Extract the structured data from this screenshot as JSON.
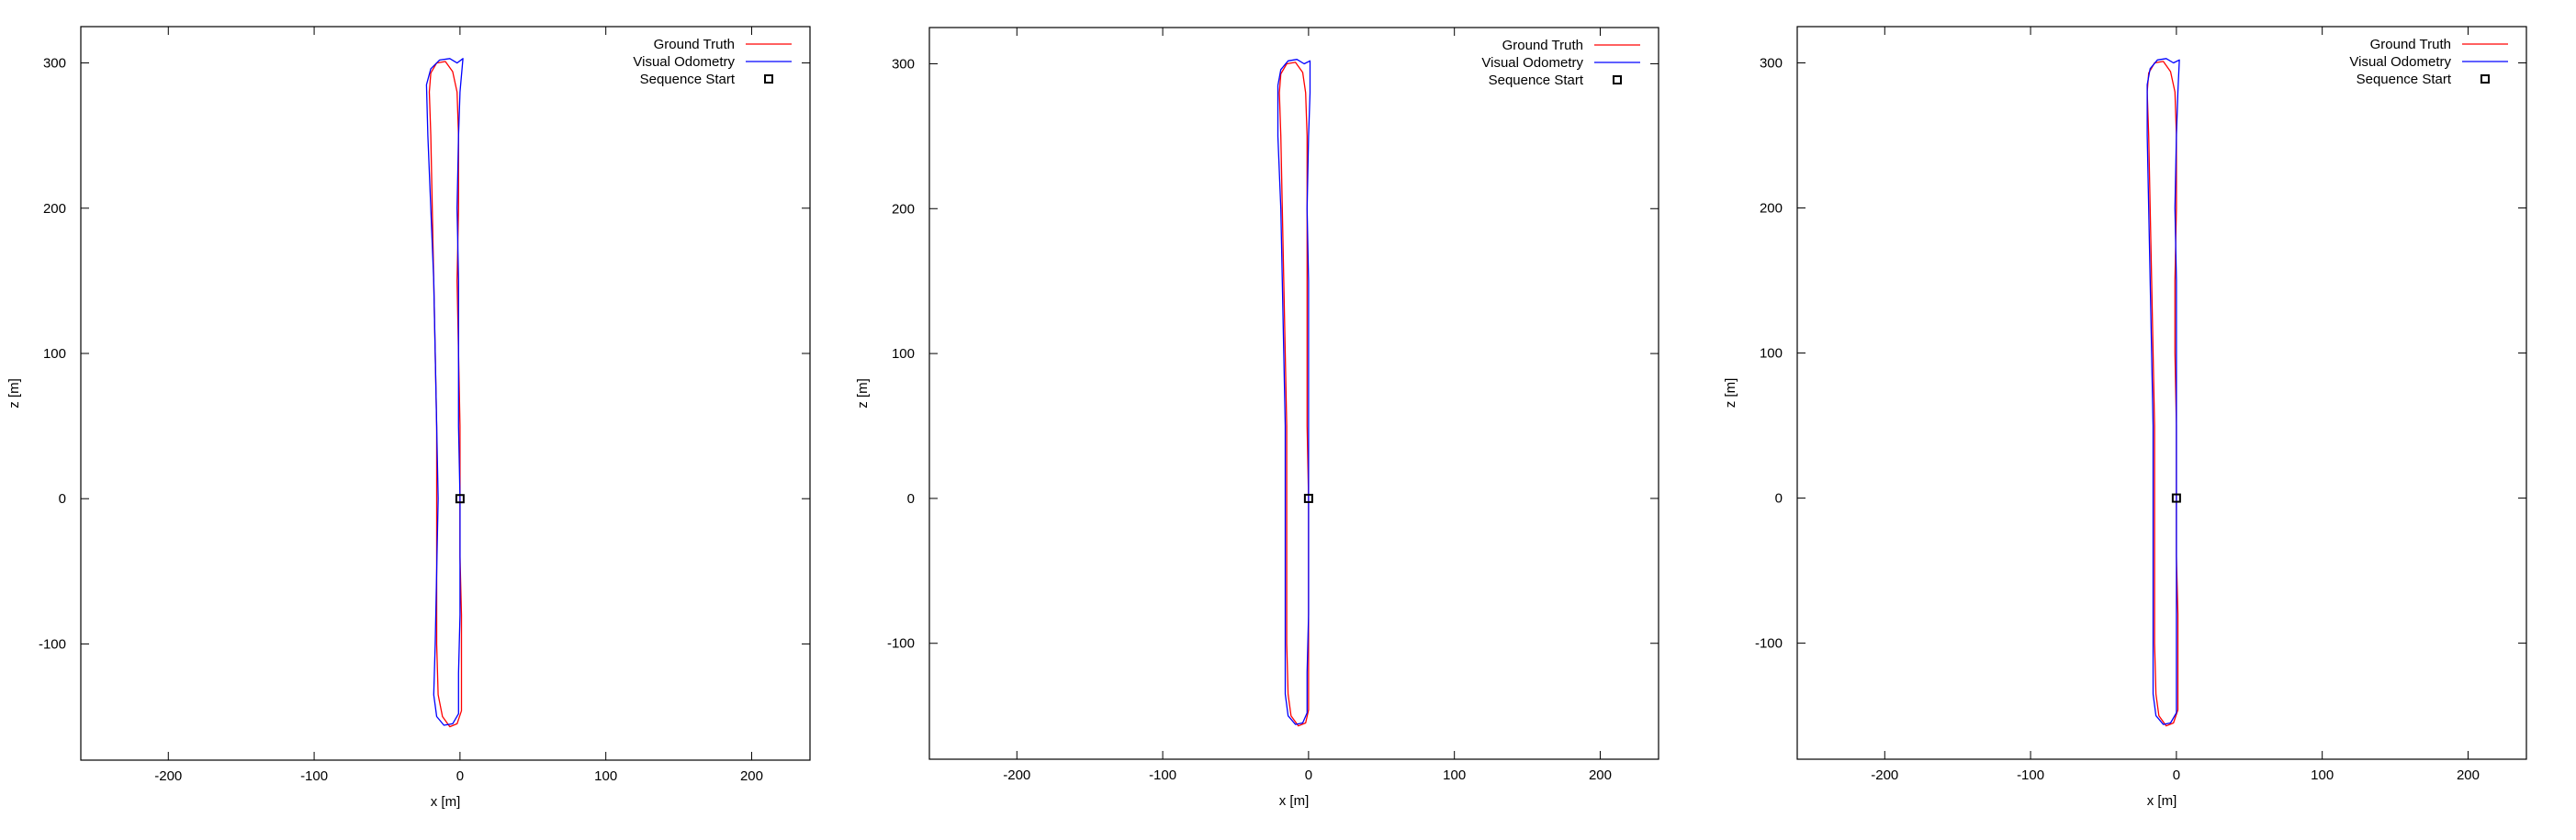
{
  "chart_data": [
    {
      "type": "line",
      "xlabel": "x [m]",
      "ylabel": "z [m]",
      "xlim": [
        -260,
        240
      ],
      "ylim": [
        -180,
        325
      ],
      "x_ticks": [
        -200,
        -100,
        0,
        100,
        200
      ],
      "y_ticks": [
        -100,
        0,
        100,
        200,
        300
      ],
      "x_tick_labels": [
        "-200",
        "-100",
        "0",
        "100",
        "200"
      ],
      "y_tick_labels": [
        "-100",
        "0",
        "100",
        "200",
        "300"
      ],
      "grid": false,
      "legend_position": "top-right",
      "legend": [
        "Ground Truth",
        "Visual Odometry",
        "Sequence Start"
      ],
      "series": [
        {
          "name": "Ground Truth",
          "color": "#ff0000",
          "points": [
            [
              0,
              0
            ],
            [
              0,
              50
            ],
            [
              -1,
              100
            ],
            [
              -2,
              150
            ],
            [
              -1,
              200
            ],
            [
              -1,
              250
            ],
            [
              -2,
              280
            ],
            [
              -5,
              294
            ],
            [
              -10,
              301
            ],
            [
              -16,
              300
            ],
            [
              -20,
              293
            ],
            [
              -21,
              280
            ],
            [
              -20,
              250
            ],
            [
              -19,
              200
            ],
            [
              -18,
              150
            ],
            [
              -17,
              100
            ],
            [
              -16,
              50
            ],
            [
              -16,
              0
            ],
            [
              -16,
              -50
            ],
            [
              -16,
              -100
            ],
            [
              -15,
              -135
            ],
            [
              -12,
              -150
            ],
            [
              -7,
              -157
            ],
            [
              -2,
              -155
            ],
            [
              1,
              -146
            ],
            [
              1,
              -120
            ],
            [
              1,
              -80
            ],
            [
              0,
              -40
            ],
            [
              0,
              0
            ]
          ]
        },
        {
          "name": "Visual Odometry",
          "color": "#0000ff",
          "points": [
            [
              0,
              0
            ],
            [
              -1,
              50
            ],
            [
              -1,
              100
            ],
            [
              -1,
              150
            ],
            [
              -2,
              200
            ],
            [
              -1,
              250
            ],
            [
              0,
              280
            ],
            [
              2,
              303
            ],
            [
              -2,
              300
            ],
            [
              -7,
              303
            ],
            [
              -14,
              302
            ],
            [
              -20,
              296
            ],
            [
              -23,
              285
            ],
            [
              -22,
              250
            ],
            [
              -20,
              200
            ],
            [
              -18,
              150
            ],
            [
              -17,
              100
            ],
            [
              -16,
              50
            ],
            [
              -15,
              0
            ],
            [
              -16,
              -50
            ],
            [
              -17,
              -100
            ],
            [
              -18,
              -135
            ],
            [
              -16,
              -150
            ],
            [
              -11,
              -156
            ],
            [
              -5,
              -155
            ],
            [
              -1,
              -148
            ],
            [
              -1,
              -120
            ],
            [
              0,
              -80
            ],
            [
              0,
              -40
            ],
            [
              0,
              0
            ]
          ]
        }
      ],
      "marker": {
        "name": "Sequence Start",
        "x": 0,
        "y": 0,
        "color": "#000000"
      }
    },
    {
      "type": "line",
      "xlabel": "x [m]",
      "ylabel": "z [m]",
      "xlim": [
        -260,
        240
      ],
      "ylim": [
        -180,
        325
      ],
      "x_ticks": [
        -200,
        -100,
        0,
        100,
        200
      ],
      "y_ticks": [
        -100,
        0,
        100,
        200,
        300
      ],
      "x_tick_labels": [
        "-200",
        "-100",
        "0",
        "100",
        "200"
      ],
      "y_tick_labels": [
        "-100",
        "0",
        "100",
        "200",
        "300"
      ],
      "grid": false,
      "legend_position": "top-right",
      "legend": [
        "Ground Truth",
        "Visual Odometry",
        "Sequence Start"
      ],
      "series": [
        {
          "name": "Ground Truth",
          "color": "#ff0000",
          "points": [
            [
              0,
              0
            ],
            [
              -1,
              50
            ],
            [
              -1,
              100
            ],
            [
              -1,
              150
            ],
            [
              -1,
              200
            ],
            [
              -1,
              250
            ],
            [
              -2,
              280
            ],
            [
              -4,
              294
            ],
            [
              -9,
              301
            ],
            [
              -15,
              300
            ],
            [
              -19,
              293
            ],
            [
              -20,
              280
            ],
            [
              -19,
              250
            ],
            [
              -18,
              200
            ],
            [
              -17,
              150
            ],
            [
              -16,
              100
            ],
            [
              -15,
              50
            ],
            [
              -15,
              0
            ],
            [
              -15,
              -50
            ],
            [
              -15,
              -100
            ],
            [
              -14,
              -135
            ],
            [
              -12,
              -150
            ],
            [
              -7,
              -157
            ],
            [
              -2,
              -155
            ],
            [
              0,
              -146
            ],
            [
              0,
              -120
            ],
            [
              0,
              -80
            ],
            [
              0,
              -40
            ],
            [
              0,
              0
            ]
          ]
        },
        {
          "name": "Visual Odometry",
          "color": "#0000ff",
          "points": [
            [
              0,
              0
            ],
            [
              0,
              50
            ],
            [
              0,
              100
            ],
            [
              0,
              150
            ],
            [
              -1,
              200
            ],
            [
              0,
              250
            ],
            [
              1,
              280
            ],
            [
              1,
              302
            ],
            [
              -3,
              300
            ],
            [
              -8,
              303
            ],
            [
              -14,
              302
            ],
            [
              -19,
              296
            ],
            [
              -21,
              285
            ],
            [
              -21,
              250
            ],
            [
              -19,
              200
            ],
            [
              -18,
              150
            ],
            [
              -17,
              100
            ],
            [
              -16,
              50
            ],
            [
              -16,
              0
            ],
            [
              -16,
              -50
            ],
            [
              -16,
              -100
            ],
            [
              -16,
              -135
            ],
            [
              -14,
              -150
            ],
            [
              -9,
              -156
            ],
            [
              -4,
              -155
            ],
            [
              -1,
              -148
            ],
            [
              -1,
              -120
            ],
            [
              0,
              -80
            ],
            [
              0,
              -40
            ],
            [
              0,
              0
            ]
          ]
        }
      ],
      "marker": {
        "name": "Sequence Start",
        "x": 0,
        "y": 0,
        "color": "#000000"
      }
    },
    {
      "type": "line",
      "xlabel": "x [m]",
      "ylabel": "z [m]",
      "xlim": [
        -260,
        240
      ],
      "ylim": [
        -180,
        325
      ],
      "x_ticks": [
        -200,
        -100,
        0,
        100,
        200
      ],
      "y_ticks": [
        -100,
        0,
        100,
        200,
        300
      ],
      "x_tick_labels": [
        "-200",
        "-100",
        "0",
        "100",
        "200"
      ],
      "y_tick_labels": [
        "-100",
        "0",
        "100",
        "200",
        "300"
      ],
      "grid": false,
      "legend_position": "top-right",
      "legend": [
        "Ground Truth",
        "Visual Odometry",
        "Sequence Start"
      ],
      "series": [
        {
          "name": "Ground Truth",
          "color": "#ff0000",
          "points": [
            [
              0,
              0
            ],
            [
              0,
              50
            ],
            [
              -1,
              100
            ],
            [
              -1,
              150
            ],
            [
              0,
              200
            ],
            [
              0,
              250
            ],
            [
              -1,
              280
            ],
            [
              -4,
              294
            ],
            [
              -9,
              301
            ],
            [
              -15,
              300
            ],
            [
              -19,
              293
            ],
            [
              -20,
              280
            ],
            [
              -19,
              250
            ],
            [
              -18,
              200
            ],
            [
              -17,
              150
            ],
            [
              -16,
              100
            ],
            [
              -15,
              50
            ],
            [
              -15,
              0
            ],
            [
              -15,
              -50
            ],
            [
              -15,
              -100
            ],
            [
              -14,
              -135
            ],
            [
              -12,
              -150
            ],
            [
              -7,
              -157
            ],
            [
              -2,
              -155
            ],
            [
              1,
              -146
            ],
            [
              1,
              -120
            ],
            [
              1,
              -80
            ],
            [
              0,
              -40
            ],
            [
              0,
              0
            ]
          ]
        },
        {
          "name": "Visual Odometry",
          "color": "#0000ff",
          "points": [
            [
              0,
              0
            ],
            [
              0,
              50
            ],
            [
              0,
              100
            ],
            [
              0,
              150
            ],
            [
              -1,
              200
            ],
            [
              0,
              250
            ],
            [
              1,
              280
            ],
            [
              2,
              302
            ],
            [
              -2,
              300
            ],
            [
              -7,
              303
            ],
            [
              -13,
              302
            ],
            [
              -18,
              296
            ],
            [
              -20,
              285
            ],
            [
              -20,
              250
            ],
            [
              -19,
              200
            ],
            [
              -18,
              150
            ],
            [
              -17,
              100
            ],
            [
              -16,
              50
            ],
            [
              -16,
              0
            ],
            [
              -16,
              -50
            ],
            [
              -16,
              -100
            ],
            [
              -16,
              -135
            ],
            [
              -14,
              -150
            ],
            [
              -9,
              -156
            ],
            [
              -4,
              -155
            ],
            [
              0,
              -148
            ],
            [
              0,
              -120
            ],
            [
              0,
              -80
            ],
            [
              0,
              -40
            ],
            [
              0,
              0
            ]
          ]
        }
      ],
      "marker": {
        "name": "Sequence Start",
        "x": 0,
        "y": 0,
        "color": "#000000"
      }
    }
  ]
}
